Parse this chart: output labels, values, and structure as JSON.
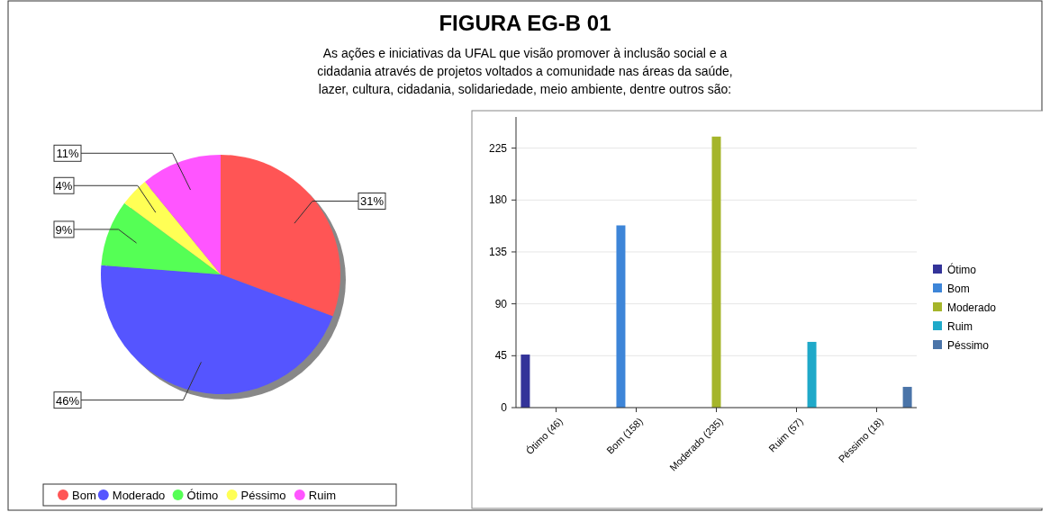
{
  "chart_data": [
    {
      "type": "other",
      "title": "FIGURA EG-B 01",
      "subtitle": "As ações e iniciativas da UFAL que visão promover à inclusão social e a cidadania através de projetos voltados a comunidade nas áreas da saúde, lazer, cultura, cidadania, solidariedade, meio ambiente, dentre outros são:"
    },
    {
      "type": "pie",
      "categories": [
        "Bom",
        "Moderado",
        "Ótimo",
        "Péssimo",
        "Ruim"
      ],
      "values": [
        31,
        46,
        9,
        4,
        11
      ],
      "colors": [
        "#ff5555",
        "#5555ff",
        "#55ff55",
        "#ffff55",
        "#ff55ff"
      ],
      "value_labels": [
        "31%",
        "46%",
        "9%",
        "4%",
        "11%"
      ],
      "legend": "bottom"
    },
    {
      "type": "bar",
      "categories": [
        "Ótimo (46)",
        "Bom (158)",
        "Moderado (235)",
        "Ruim (57)",
        "Péssimo (18)"
      ],
      "series": [
        {
          "name": "Ótimo",
          "color": "#333399",
          "values": [
            46,
            null,
            null,
            null,
            null
          ]
        },
        {
          "name": "Bom",
          "color": "#3d85d8",
          "values": [
            null,
            158,
            null,
            null,
            null
          ]
        },
        {
          "name": "Moderado",
          "color": "#a5b52a",
          "values": [
            null,
            null,
            235,
            null,
            null
          ]
        },
        {
          "name": "Ruim",
          "color": "#1fa9c9",
          "values": [
            null,
            null,
            null,
            57,
            null
          ]
        },
        {
          "name": "Péssimo",
          "color": "#4a74a8",
          "values": [
            null,
            null,
            null,
            null,
            18
          ]
        }
      ],
      "ylim": [
        0,
        252
      ],
      "yticks": [
        0,
        45,
        90,
        135,
        180,
        225
      ],
      "grid": "y",
      "legend": "right"
    }
  ]
}
